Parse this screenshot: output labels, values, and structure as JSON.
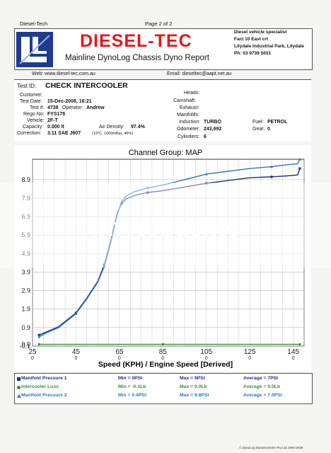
{
  "header": {
    "left_text": "Diesel-Tech",
    "page_text": "Page 2 of 2",
    "brand": "DIESEL-TEC",
    "report_title": "Mainline DynoLog Chassis Dyno Report",
    "company_lines": [
      "Diesel vehicle specialist",
      "Fact 10 East crt",
      "Lilydale Industrial Park, Lilydale",
      "Ph: 03 9739 5031"
    ],
    "web": "Web: www.diesel-tec.com.au",
    "email": "Email: dieseltec@aapt.net.au"
  },
  "info": {
    "test_id_label": "Test ID:",
    "test_id": "CHECK INTERCOOLER",
    "customer_label": "Customer:",
    "test_date_label": "Test Date:",
    "test_date": "15-Dec-2008, 16:21",
    "test_no_label": "Test #:",
    "test_no": "4738",
    "operator_label": "Operator:",
    "operator": "Andrew",
    "rego_label": "Rego No:",
    "rego": "FYS176",
    "vehicle_label": "Vehicle:",
    "vehicle": "2F-T",
    "capacity_label": "Capacity:",
    "capacity": "0.000 lt",
    "air_density_label": "Air Density:",
    "air_density": "97.4%",
    "correction_label": "Correction:",
    "correction": "3.11 SAE J607",
    "air_detail": "(19°C, 1000mBar, 46%)",
    "heads_label": "Heads:",
    "camshaft_label": "Camshaft:",
    "exhaust_label": "Exhaust:",
    "manifolds_label": "Manifolds:",
    "induction_label": "Induction:",
    "induction": "TURBO",
    "odometer_label": "Odometer:",
    "odometer": "243,692",
    "cylinders_label": "Cylinders:",
    "cylinders": "6",
    "fuel_label": "Fuel:",
    "fuel": "PETROL",
    "gear_label": "Gear:",
    "gear": "0"
  },
  "chart_data": {
    "type": "line",
    "title": "Channel Group: MAP",
    "xlabel": "Speed (KPH) / Engine Speed [Derived]",
    "ylabel": "",
    "xlim": [
      25,
      150
    ],
    "ylim": [
      -0.1,
      10.0
    ],
    "xticks": [
      "25",
      "45",
      "65",
      "85",
      "105",
      "125",
      "145"
    ],
    "xticks_sub": [
      "0",
      "0",
      "0",
      "0",
      "0",
      "0",
      "0"
    ],
    "yticks": [
      "8.9",
      "7.9",
      "6.9",
      "5.9",
      "4.9",
      "3.9",
      "2.9",
      "1.9",
      "0.9",
      "0.0",
      "-0.1"
    ],
    "grid": true,
    "series": [
      {
        "name": "Manifold Pressure 1",
        "color": "#1f2d8a",
        "x": [
          28,
          32,
          37,
          45,
          50,
          55,
          58,
          61,
          64,
          66,
          68,
          72,
          78,
          85,
          95,
          105,
          115,
          125,
          135,
          142,
          147,
          148
        ],
        "y": [
          0.5,
          0.7,
          0.95,
          1.7,
          2.5,
          3.4,
          4.3,
          5.6,
          7.1,
          7.6,
          7.85,
          8.05,
          8.2,
          8.3,
          8.5,
          8.7,
          8.85,
          9.0,
          9.05,
          9.1,
          9.15,
          9.5
        ]
      },
      {
        "name": "Intercooler Loss",
        "color": "#3d8a3a",
        "x": [
          28,
          45,
          65,
          85,
          105,
          125,
          148
        ],
        "y": [
          0.0,
          0.0,
          0.0,
          0.0,
          0.0,
          0.0,
          0.0
        ]
      },
      {
        "name": "Manifold Pressure 2",
        "color": "#2d74c4",
        "x": [
          28,
          32,
          37,
          45,
          50,
          55,
          58,
          61,
          64,
          66,
          68,
          72,
          78,
          85,
          95,
          105,
          115,
          125,
          135,
          142,
          147,
          148
        ],
        "y": [
          0.4,
          0.65,
          0.9,
          1.65,
          2.45,
          3.35,
          4.2,
          5.5,
          7.0,
          7.7,
          8.0,
          8.25,
          8.45,
          8.6,
          8.9,
          9.2,
          9.35,
          9.5,
          9.6,
          9.7,
          9.75,
          10.0
        ]
      }
    ],
    "legend_rows": [
      {
        "name": "Manifold Pressure 1",
        "min": "Min = 0PSI",
        "max": "Max = 9PSI",
        "avg": "Average = 7PSI",
        "color": "#1f2d8a",
        "marker": "square"
      },
      {
        "name": "Intercooler Loss",
        "min": "Min = -0.1Lb",
        "max": "Max = 0.0Lb",
        "avg": "Average = 0.0Lb",
        "color": "#3d8a3a",
        "marker": "circle"
      },
      {
        "name": "Manifold Pressure 2",
        "min": "Min = 0.4PSI",
        "max": "Max = 9.8PSI",
        "avg": "Average = 7.0PSI",
        "color": "#2d74c4",
        "marker": "triangle"
      }
    ]
  },
  "footer": {
    "right": "© DynoLog Dynamometer Pty Ltd 1994-2008"
  },
  "watermark": "photobucket"
}
